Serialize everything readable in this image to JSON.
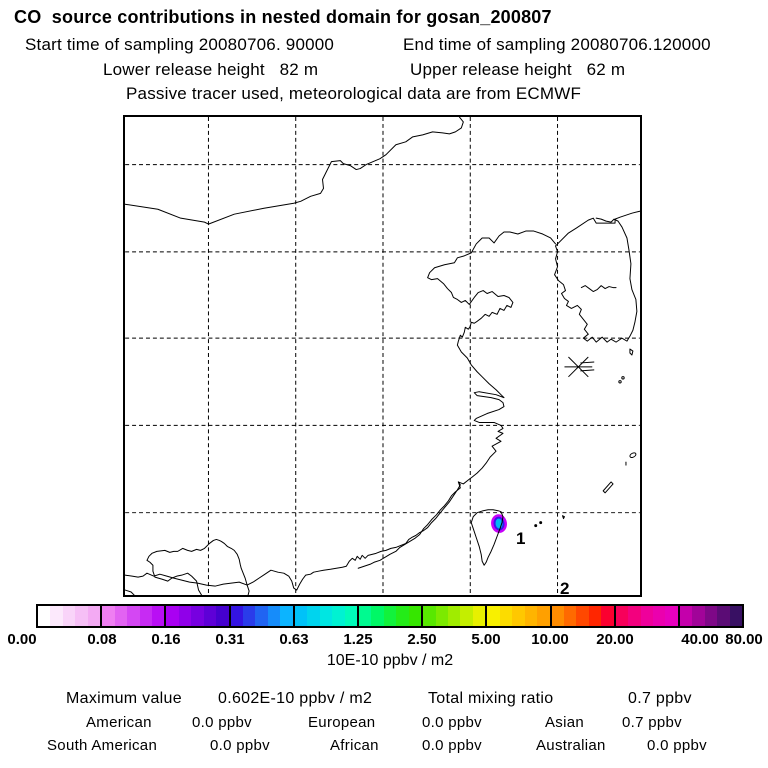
{
  "header": {
    "title": "CO  source contributions in nested domain for gosan_200807",
    "start_time": "Start time of sampling 20080706. 90000",
    "end_time": "End time of sampling 20080706.120000",
    "lower_release": "Lower release height   82 m",
    "upper_release": "Upper release height   62 m",
    "tracer_note": "Passive tracer used, meteorological data are from ECMWF"
  },
  "map": {
    "point_label_1": "1",
    "point_label_2": "2",
    "station_marker_icon": "asterisk-star",
    "plume_colors": {
      "outer": "#c800f8",
      "middle": "#3418ec",
      "inner": "#00b8f2"
    }
  },
  "colorbar": {
    "caption": "10E-10 ppbv / m2",
    "tick_labels": [
      "0.00",
      "0.08",
      "0.16",
      "0.31",
      "0.63",
      "1.25",
      "2.50",
      "5.00",
      "10.00",
      "20.00",
      "40.00",
      "80.00"
    ],
    "segments": [
      {
        "colors": [
          "#ffffff",
          "#fce9fc",
          "#f9d4f9",
          "#f6bff6",
          "#f3aaf3"
        ]
      },
      {
        "colors": [
          "#ef7ff2",
          "#e263f2",
          "#d447f3",
          "#c72bf3",
          "#b90ff4"
        ]
      },
      {
        "colors": [
          "#a900f2",
          "#9000e9",
          "#7700e0",
          "#5e00d7",
          "#4500ce"
        ]
      },
      {
        "colors": [
          "#3414e2",
          "#2a3cea",
          "#2064f2",
          "#168cfa",
          "#0cb4ff"
        ]
      },
      {
        "colors": [
          "#00c2f8",
          "#00d4ee",
          "#00e6e2",
          "#00f2d2",
          "#00fcba"
        ]
      },
      {
        "colors": [
          "#00fa90",
          "#00f866",
          "#12f23c",
          "#24ec18",
          "#36e600"
        ]
      },
      {
        "colors": [
          "#58e800",
          "#7cea00",
          "#a0ec00",
          "#c4ee00",
          "#e8f000"
        ]
      },
      {
        "colors": [
          "#f8f000",
          "#fcdc00",
          "#ffc800",
          "#ffb400",
          "#ffa000"
        ]
      },
      {
        "colors": [
          "#ff8c00",
          "#ff6a00",
          "#ff4800",
          "#ff2600",
          "#fb0030"
        ]
      },
      {
        "colors": [
          "#f7005a",
          "#f3007e",
          "#ef009b",
          "#eb00ae",
          "#e700bd"
        ]
      },
      {
        "colors": [
          "#c400ab",
          "#a10499",
          "#7e0887",
          "#5b0c75",
          "#381063"
        ]
      }
    ]
  },
  "footer": {
    "max_label": "Maximum value",
    "max_value": "0.602E-10 ppbv / m2",
    "tmr_label": "Total mixing ratio",
    "tmr_value": "0.7 ppbv",
    "regions": [
      {
        "name": "American",
        "value": "0.0 ppbv"
      },
      {
        "name": "European",
        "value": "0.0 ppbv"
      },
      {
        "name": "Asian",
        "value": "0.7 ppbv"
      },
      {
        "name": "South American",
        "value": "0.0 ppbv"
      },
      {
        "name": "African",
        "value": "0.0 ppbv"
      },
      {
        "name": "Australian",
        "value": "0.0 ppbv"
      }
    ]
  },
  "chart_data": {
    "type": "heatmap",
    "subtype": "geographic-source-contribution-map",
    "title": "CO  source contributions in nested domain for gosan_200807",
    "sampling": {
      "start": "20080706. 90000",
      "end": "20080706.120000"
    },
    "release_height_m": {
      "lower": 82,
      "upper": 62
    },
    "meteorology": "Passive tracer used, meteorological data are from ECMWF",
    "colorbar_units": "10E-10 ppbv / m2",
    "colorbar_levels": [
      0.0,
      0.08,
      0.16,
      0.31,
      0.63,
      1.25,
      2.5,
      5.0,
      10.0,
      20.0,
      40.0,
      80.0
    ],
    "maximum_value": "0.602E-10 ppbv / m2",
    "total_mixing_ratio_ppbv": 0.7,
    "contributions_ppbv": {
      "American": 0.0,
      "European": 0.0,
      "Asian": 0.7,
      "South American": 0.0,
      "African": 0.0,
      "Australian": 0.0
    },
    "plume": {
      "label": "1",
      "location": "northern Taiwan",
      "value_range_10E-10_ppbv_m2": [
        0.08,
        0.63
      ]
    },
    "station_marker": {
      "name": "gosan receptor",
      "symbol": "asterisk",
      "location": "south of Korean peninsula"
    },
    "numbered_points": [
      "1",
      "2"
    ],
    "grid": {
      "vertical_lines": 5,
      "horizontal_lines": 5,
      "style": "dashed"
    }
  }
}
